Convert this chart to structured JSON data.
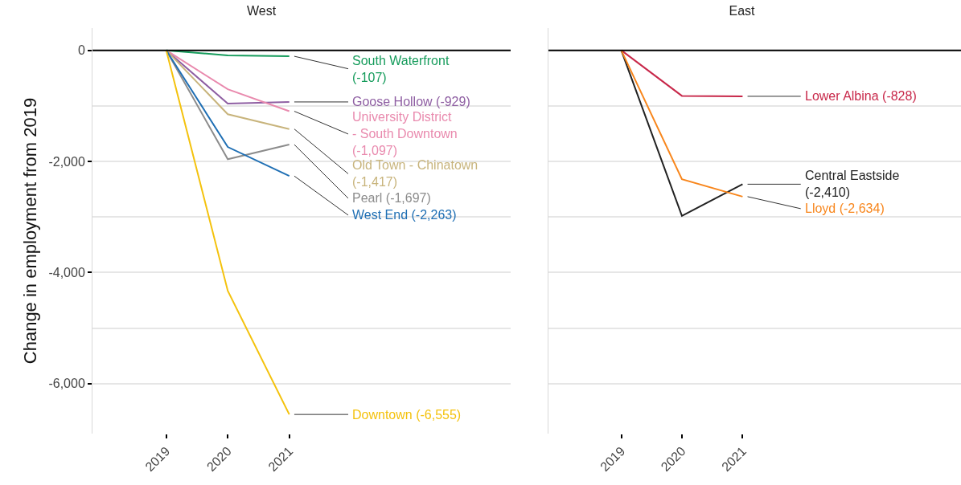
{
  "chart_data": [
    {
      "type": "line",
      "title": "West",
      "ylabel": "Change in employment from 2019",
      "x": [
        2019,
        2020,
        2021
      ],
      "xlim": [
        2017.8,
        2024.6
      ],
      "xticks": [
        2019,
        2020,
        2021
      ],
      "ylim": [
        -6900,
        400
      ],
      "yticks": [
        0,
        {
          "value": -1000,
          "label": null
        },
        {
          "value": -2000,
          "label": "-2,000"
        },
        {
          "value": -3000,
          "label": null
        },
        {
          "value": -4000,
          "label": "-4,000"
        },
        {
          "value": -5000,
          "label": null
        },
        {
          "value": -6000,
          "label": "-6,000"
        }
      ],
      "grid": "y",
      "legend": false,
      "marker": "none",
      "line_style": "solid",
      "ref_lines": [
        {
          "axis": "y",
          "value": 0,
          "color": "#000000"
        }
      ],
      "series": [
        {
          "name": "South Waterfront",
          "color": "#169c5c",
          "values": [
            0,
            -90,
            -107
          ],
          "value_labels": [
            null,
            null,
            "(-107)"
          ]
        },
        {
          "name": "Goose Hollow",
          "color": "#8e5ea2",
          "values": [
            0,
            -960,
            -929
          ],
          "value_labels": [
            null,
            null,
            "(-929)"
          ]
        },
        {
          "name": "University District - South Downtown",
          "color": "#e98aae",
          "values": [
            0,
            -700,
            -1097
          ],
          "value_labels": [
            null,
            null,
            "(-1,097)"
          ]
        },
        {
          "name": "Old Town - Chinatown",
          "color": "#c8b47c",
          "values": [
            0,
            -1150,
            -1417
          ],
          "value_labels": [
            null,
            null,
            "(-1,417)"
          ]
        },
        {
          "name": "Pearl",
          "color": "#8c8c8c",
          "values": [
            0,
            -1960,
            -1697
          ],
          "value_labels": [
            null,
            null,
            "(-1,697)"
          ]
        },
        {
          "name": "West End",
          "color": "#1f6fb4",
          "values": [
            0,
            -1740,
            -2263
          ],
          "value_labels": [
            null,
            null,
            "(-2,263)"
          ]
        },
        {
          "name": "Downtown",
          "color": "#f4c20d",
          "values": [
            0,
            -4330,
            -6555
          ],
          "value_labels": [
            null,
            null,
            "(-6,555)"
          ]
        }
      ]
    },
    {
      "type": "line",
      "title": "East",
      "x": [
        2019,
        2020,
        2021
      ],
      "xlim": [
        2017.8,
        2024.6
      ],
      "xticks": [
        2019,
        2020,
        2021
      ],
      "ylim": [
        -6900,
        400
      ],
      "yticks": [
        {
          "value": 0,
          "label": null
        },
        {
          "value": -1000,
          "label": null
        },
        {
          "value": -2000,
          "label": null
        },
        {
          "value": -3000,
          "label": null
        },
        {
          "value": -4000,
          "label": null
        },
        {
          "value": -5000,
          "label": null
        },
        {
          "value": -6000,
          "label": null
        }
      ],
      "tick_labels": "x",
      "grid": "y",
      "legend": false,
      "marker": "none",
      "line_style": "solid",
      "ref_lines": [
        {
          "axis": "y",
          "value": 0,
          "color": "#000000"
        }
      ],
      "series": [
        {
          "name": "Lower Albina",
          "color": "#c8284a",
          "values": [
            0,
            -820,
            -828
          ],
          "value_labels": [
            null,
            null,
            "(-828)"
          ]
        },
        {
          "name": "Central Eastside",
          "color": "#222222",
          "values": [
            0,
            -2980,
            -2410
          ],
          "value_labels": [
            null,
            null,
            "(-2,410)"
          ]
        },
        {
          "name": "Lloyd",
          "color": "#f8861c",
          "values": [
            0,
            -2320,
            -2634
          ],
          "value_labels": [
            null,
            null,
            "(-2,634)"
          ]
        }
      ]
    }
  ]
}
